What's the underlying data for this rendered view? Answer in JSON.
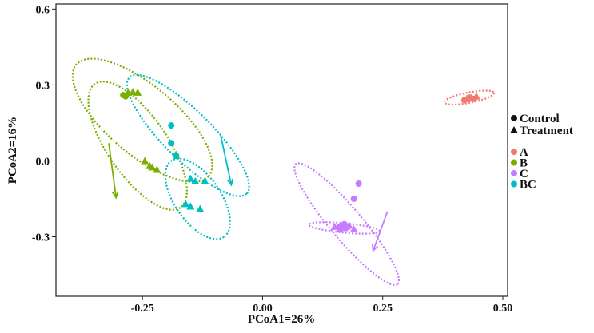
{
  "chart_data": {
    "type": "scatter",
    "xlabel": "PCoA1=26%",
    "ylabel": "PCoA2=16%",
    "xlim": [
      -0.43,
      0.51
    ],
    "ylim": [
      -0.535,
      0.62
    ],
    "x_ticks": [
      {
        "value": -0.25,
        "label": "-0.25"
      },
      {
        "value": 0.0,
        "label": "0.00"
      },
      {
        "value": 0.25,
        "label": "0.25"
      },
      {
        "value": 0.5,
        "label": "0.50"
      }
    ],
    "y_ticks": [
      {
        "value": 0.6,
        "label": "0.6"
      },
      {
        "value": 0.3,
        "label": "0.3"
      },
      {
        "value": 0.0,
        "label": "0.0"
      },
      {
        "value": -0.3,
        "label": "-0.3"
      }
    ],
    "legend_shape": [
      {
        "label": "Control",
        "shape": "circle"
      },
      {
        "label": "Treatment",
        "shape": "triangle"
      }
    ],
    "legend_groups": [
      {
        "label": "A",
        "color": "#F07A70"
      },
      {
        "label": "B",
        "color": "#7CAE00"
      },
      {
        "label": "C",
        "color": "#C77CFF"
      },
      {
        "label": "BC",
        "color": "#00BFC4"
      }
    ],
    "series": [
      {
        "name": "A Control",
        "group": "A",
        "shape": "circle",
        "points": [
          [
            0.42,
            0.24
          ],
          [
            0.43,
            0.25
          ],
          [
            0.44,
            0.245
          ]
        ]
      },
      {
        "name": "A Treatment",
        "group": "A",
        "shape": "triangle",
        "points": [
          [
            0.425,
            0.245
          ],
          [
            0.435,
            0.25
          ],
          [
            0.445,
            0.255
          ]
        ]
      },
      {
        "name": "B Control",
        "group": "B",
        "shape": "circle",
        "points": [
          [
            -0.29,
            0.26
          ],
          [
            -0.285,
            0.255
          ]
        ]
      },
      {
        "name": "B Treatment",
        "group": "B",
        "shape": "triangle",
        "points": [
          [
            -0.28,
            0.27
          ],
          [
            -0.27,
            0.272
          ],
          [
            -0.26,
            0.27
          ],
          [
            -0.245,
            0.0
          ],
          [
            -0.235,
            -0.02
          ],
          [
            -0.23,
            -0.025
          ],
          [
            -0.22,
            -0.035
          ]
        ]
      },
      {
        "name": "C Control",
        "group": "C",
        "shape": "circle",
        "points": [
          [
            0.2,
            -0.09
          ],
          [
            0.19,
            -0.15
          ],
          [
            0.17,
            -0.25
          ],
          [
            0.16,
            -0.26
          ]
        ]
      },
      {
        "name": "C Treatment",
        "group": "C",
        "shape": "triangle",
        "points": [
          [
            0.15,
            -0.26
          ],
          [
            0.16,
            -0.27
          ],
          [
            0.17,
            -0.265
          ],
          [
            0.18,
            -0.255
          ],
          [
            0.19,
            -0.27
          ],
          [
            0.175,
            -0.26
          ]
        ]
      },
      {
        "name": "BC Control",
        "group": "BC",
        "shape": "circle",
        "points": [
          [
            -0.19,
            0.14
          ],
          [
            -0.19,
            0.07
          ],
          [
            -0.18,
            0.02
          ]
        ]
      },
      {
        "name": "BC Treatment",
        "group": "BC",
        "shape": "triangle",
        "points": [
          [
            -0.15,
            -0.07
          ],
          [
            -0.14,
            -0.08
          ],
          [
            -0.12,
            -0.08
          ],
          [
            -0.16,
            -0.17
          ],
          [
            -0.15,
            -0.18
          ],
          [
            -0.13,
            -0.19
          ]
        ]
      }
    ],
    "ellipses": [
      {
        "group": "A",
        "cx": 0.43,
        "cy": 0.25,
        "rx": 0.055,
        "ry": 0.018,
        "angle_deg": 20
      },
      {
        "group": "B",
        "cx": -0.26,
        "cy": 0.06,
        "rx": 0.26,
        "ry": 0.065,
        "angle_deg": -70
      },
      {
        "group": "B",
        "cx": -0.25,
        "cy": 0.16,
        "rx": 0.26,
        "ry": 0.08,
        "angle_deg": -58
      },
      {
        "group": "BC",
        "cx": -0.155,
        "cy": 0.1,
        "rx": 0.26,
        "ry": 0.055,
        "angle_deg": -62
      },
      {
        "group": "BC",
        "cx": -0.135,
        "cy": -0.15,
        "rx": 0.16,
        "ry": 0.05,
        "angle_deg": -70
      },
      {
        "group": "C",
        "cx": 0.175,
        "cy": -0.25,
        "rx": 0.26,
        "ry": 0.035,
        "angle_deg": -66
      },
      {
        "group": "C",
        "cx": 0.17,
        "cy": -0.265,
        "rx": 0.075,
        "ry": 0.018,
        "angle_deg": -10
      }
    ],
    "arrows": [
      {
        "group": "B",
        "from": [
          -0.32,
          0.07
        ],
        "to": [
          -0.305,
          -0.145
        ]
      },
      {
        "group": "BC",
        "from": [
          -0.087,
          0.1
        ],
        "to": [
          -0.065,
          -0.095
        ]
      },
      {
        "group": "C",
        "from": [
          0.26,
          -0.2
        ],
        "to": [
          0.23,
          -0.355
        ]
      }
    ],
    "grid": false
  }
}
